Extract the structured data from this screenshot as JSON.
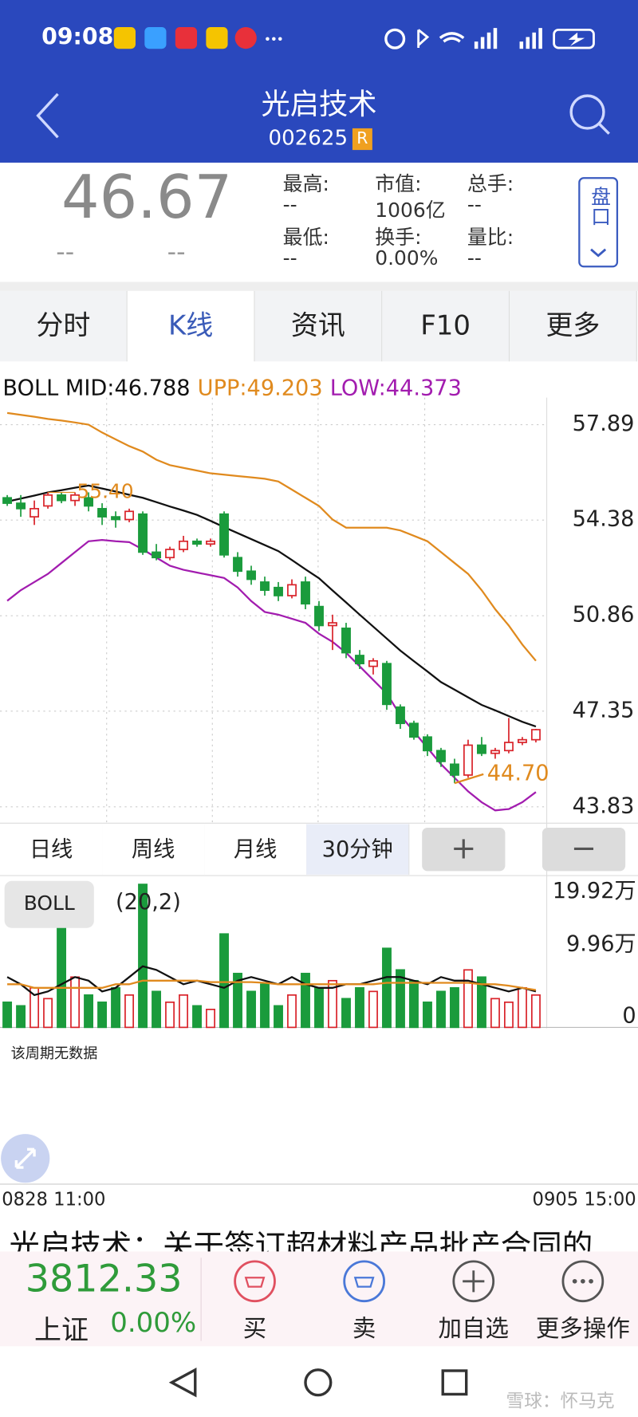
{
  "status_bar": {
    "time": "09:08"
  },
  "header": {
    "title": "光启技术",
    "code": "002625",
    "badge": "R"
  },
  "quote": {
    "price": "46.67",
    "change": "--",
    "change_pct": "--",
    "button": "盘口",
    "fields": [
      {
        "label": "最高:",
        "value": "--"
      },
      {
        "label": "市值:",
        "value": "1006亿"
      },
      {
        "label": "总手:",
        "value": "--"
      },
      {
        "label": "最低:",
        "value": "--"
      },
      {
        "label": "换手:",
        "value": "0.00%"
      },
      {
        "label": "量比:",
        "value": "--"
      }
    ]
  },
  "tabs": [
    "分时",
    "K线",
    "资讯",
    "F10",
    "更多"
  ],
  "active_tab": 1,
  "chart_data": [
    {
      "type": "candlestick",
      "legend": [
        "BOLL MID:46.788",
        "UPP:49.203",
        "LOW:44.373"
      ],
      "up_color": "#d9232a",
      "down_color": "#1a9b3c",
      "open": [
        55.2,
        55.0,
        54.5,
        54.9,
        55.3,
        55.1,
        55.2,
        54.8,
        54.5,
        54.4,
        54.6,
        53.2,
        53.0,
        53.3,
        53.6,
        53.5,
        54.6,
        53.0,
        52.5,
        52.1,
        51.9,
        51.6,
        52.1,
        51.2,
        50.5,
        50.4,
        49.4,
        49.0,
        49.1,
        47.5,
        46.9,
        46.4,
        45.9,
        45.4,
        45.0,
        46.1,
        45.8,
        45.9,
        46.2,
        46.3
      ],
      "high": [
        55.3,
        55.3,
        55.1,
        55.4,
        55.4,
        55.4,
        55.4,
        55.0,
        54.7,
        54.8,
        54.7,
        53.5,
        53.4,
        53.8,
        53.7,
        53.7,
        54.7,
        53.2,
        52.7,
        52.3,
        52.1,
        52.2,
        52.3,
        51.4,
        50.9,
        50.6,
        49.6,
        49.3,
        49.2,
        47.6,
        47.0,
        46.5,
        46.0,
        45.6,
        46.3,
        46.4,
        46.0,
        47.1,
        46.4,
        46.7
      ],
      "low": [
        54.9,
        54.5,
        54.2,
        54.8,
        55.0,
        54.9,
        54.7,
        54.2,
        54.1,
        54.3,
        53.1,
        52.9,
        52.9,
        53.2,
        53.4,
        53.4,
        53.0,
        52.3,
        52.0,
        51.6,
        51.4,
        51.5,
        51.1,
        50.3,
        49.6,
        49.3,
        48.9,
        48.7,
        47.4,
        46.7,
        46.3,
        45.7,
        45.3,
        44.7,
        44.9,
        45.7,
        45.6,
        45.8,
        46.1,
        46.2
      ],
      "close": [
        55.0,
        54.8,
        54.8,
        55.3,
        55.1,
        55.3,
        54.9,
        54.5,
        54.4,
        54.7,
        53.2,
        53.0,
        53.3,
        53.6,
        53.5,
        53.6,
        53.1,
        52.5,
        52.2,
        51.8,
        51.6,
        52.0,
        51.3,
        50.5,
        50.6,
        49.5,
        49.1,
        49.2,
        47.6,
        46.9,
        46.4,
        45.9,
        45.5,
        45.0,
        46.1,
        45.8,
        45.9,
        46.2,
        46.3,
        46.67
      ],
      "series": [
        {
          "name": "MID",
          "color": "#111111",
          "values": [
            55.06,
            55.17,
            55.28,
            55.4,
            55.48,
            55.57,
            55.65,
            55.54,
            55.43,
            55.31,
            55.2,
            55.04,
            54.88,
            54.73,
            54.57,
            54.35,
            54.12,
            53.9,
            53.68,
            53.46,
            53.24,
            52.91,
            52.57,
            52.24,
            51.79,
            51.35,
            50.9,
            50.46,
            50.02,
            49.58,
            49.19,
            48.81,
            48.42,
            48.14,
            47.86,
            47.58,
            47.38,
            47.17,
            46.96,
            46.788
          ]
        },
        {
          "name": "UPP",
          "color": "#e08a1e",
          "values": [
            58.32,
            58.25,
            58.18,
            58.1,
            58.04,
            57.97,
            57.89,
            57.6,
            57.35,
            57.1,
            56.9,
            56.6,
            56.4,
            56.3,
            56.2,
            56.1,
            56.05,
            56.0,
            55.95,
            55.9,
            55.8,
            55.5,
            55.2,
            54.9,
            54.4,
            54.1,
            54.1,
            54.1,
            54.1,
            54.0,
            53.8,
            53.6,
            53.2,
            52.8,
            52.4,
            51.8,
            51.1,
            50.5,
            49.8,
            49.203
          ]
        },
        {
          "name": "LOW",
          "color": "#a21caf",
          "values": [
            51.41,
            51.8,
            52.1,
            52.4,
            52.8,
            53.2,
            53.6,
            53.65,
            53.6,
            53.57,
            53.3,
            53.0,
            52.7,
            52.55,
            52.45,
            52.35,
            52.25,
            51.9,
            51.4,
            51.0,
            50.9,
            50.75,
            50.6,
            50.2,
            49.9,
            49.5,
            49.0,
            48.5,
            48.0,
            47.2,
            46.6,
            46.0,
            45.4,
            44.9,
            44.4,
            44.0,
            43.7,
            43.75,
            44.0,
            44.373
          ]
        }
      ],
      "annotations": [
        "55.40",
        "44.70"
      ],
      "ylim": [
        43.43,
        58.72
      ],
      "yticks": [
        57.89,
        54.38,
        50.86,
        47.35,
        43.83
      ],
      "grid": true
    },
    {
      "type": "bar",
      "button": "BOLL",
      "params": "(20,2)",
      "ylim": [
        0,
        21
      ],
      "yticks": [
        {
          "value": 19.92,
          "label": "19.92万"
        },
        {
          "value": 9.96,
          "label": "9.96万"
        },
        0
      ],
      "values": [
        3.5,
        3.0,
        5.5,
        4.0,
        14.5,
        7.0,
        4.5,
        3.5,
        5.5,
        4.5,
        19.9,
        5.0,
        3.5,
        4.5,
        3.0,
        2.5,
        13.0,
        7.5,
        5.0,
        6.0,
        3.0,
        4.5,
        7.5,
        5.5,
        6.5,
        4.0,
        5.5,
        5.0,
        11.0,
        8.0,
        6.5,
        3.5,
        5.0,
        5.5,
        8.0,
        7.0,
        4.0,
        3.5,
        5.5,
        4.5
      ],
      "lines": [
        {
          "color": "#111111",
          "values": [
            7,
            6,
            4.5,
            5,
            6,
            7,
            6.5,
            5,
            5.5,
            7,
            8.5,
            8,
            7,
            6,
            6.5,
            6,
            5.5,
            6.5,
            7,
            6.5,
            6,
            7,
            6,
            5.5,
            5.5,
            6,
            6,
            6.5,
            7,
            7,
            6.5,
            6,
            7,
            6.5,
            6.5,
            6,
            5.5,
            5,
            5.5,
            5
          ]
        },
        {
          "color": "#e08a1e",
          "values": [
            6,
            6,
            5.5,
            5.5,
            5.5,
            5.5,
            5.5,
            5.5,
            6,
            6,
            6.5,
            6.5,
            6.5,
            6.5,
            6.5,
            6.3,
            6.3,
            6.3,
            6.3,
            6.2,
            6,
            6,
            6,
            6,
            6,
            6,
            6,
            6,
            6.2,
            6.2,
            6.2,
            6.2,
            6.2,
            6.2,
            6.2,
            6,
            6,
            5.8,
            5.5,
            5.2
          ]
        }
      ]
    }
  ],
  "periods": [
    "日线",
    "周线",
    "月线",
    "30分钟"
  ],
  "active_period": 3,
  "zoom": [
    "+",
    "−"
  ],
  "no_data": "该周期无数据",
  "time_range": [
    "0828 11:00",
    "0905 15:00"
  ],
  "news": "光启技术：关于签订超材料产品批产合同的",
  "footer": {
    "index_value": "3812.33",
    "index_name": "上证",
    "index_change": "0.00%",
    "actions": [
      "买",
      "卖",
      "加自选",
      "更多操作"
    ]
  },
  "watermark": "雪球：怀马克"
}
